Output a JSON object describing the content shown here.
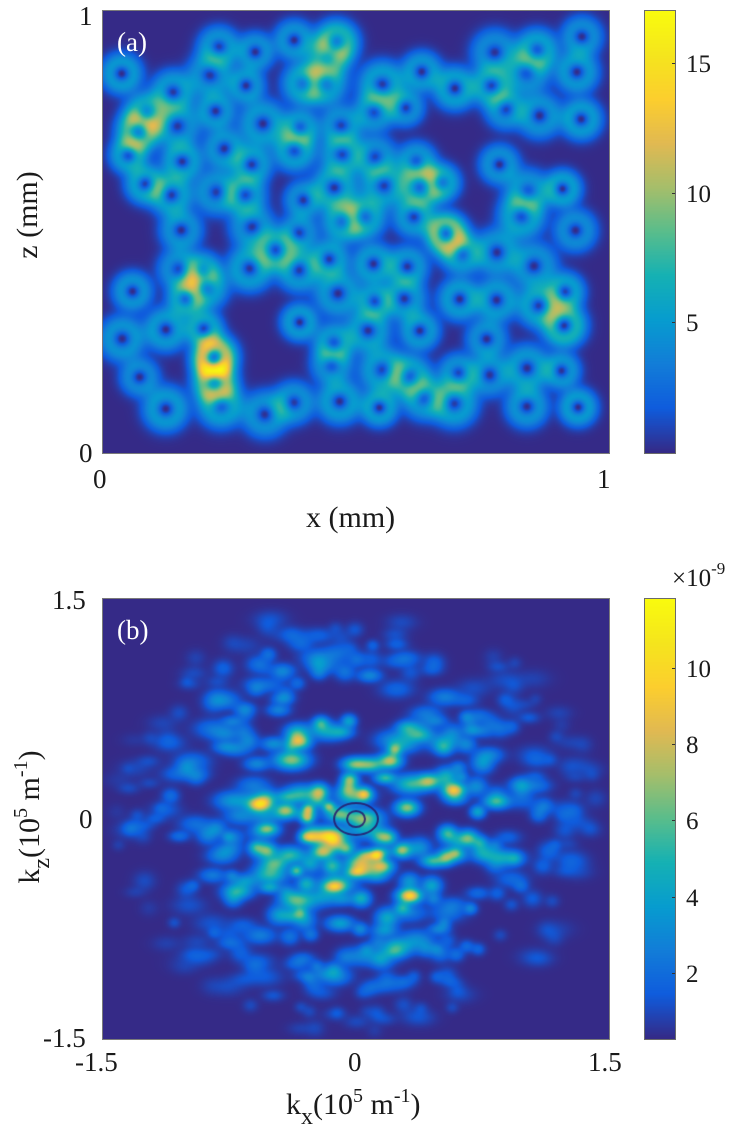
{
  "figure": {
    "panels": [
      {
        "id": "a",
        "label": "(a)",
        "xlabel": "x (mm)",
        "ylabel": "z (mm)",
        "xticks": [
          "0",
          "1"
        ],
        "yticks": [
          "1",
          "0"
        ],
        "colorbar": {
          "ticks": [
            "15",
            "10",
            "5"
          ],
          "exponent": ""
        }
      },
      {
        "id": "b",
        "label": "(b)",
        "xlabel_main": "k",
        "xlabel_sub": "x",
        "xlabel_rest": "(10",
        "xlabel_sup": "5",
        "xlabel_unit": " m",
        "xlabel_unit_sup": "-1",
        "xlabel_close": ")",
        "ylabel_main": "k",
        "ylabel_sub": "z",
        "ylabel_rest": "(10",
        "ylabel_sup": "5",
        "ylabel_unit": " m",
        "ylabel_unit_sup": "-1",
        "ylabel_close": ")",
        "xticks": [
          "-1.5",
          "0",
          "1.5"
        ],
        "yticks": [
          "1.5",
          "0",
          "-1.5"
        ],
        "colorbar": {
          "ticks": [
            "10",
            "8",
            "6",
            "4",
            "2"
          ],
          "exponent_prefix": "×10",
          "exponent_sup": "-9"
        }
      }
    ]
  },
  "chart_data": [
    {
      "type": "heatmap",
      "title": "(a)",
      "xlabel": "x (mm)",
      "ylabel": "z (mm)",
      "xlim": [
        0,
        1
      ],
      "ylim": [
        0,
        1
      ],
      "xticks": [
        0,
        1
      ],
      "yticks": [
        0,
        1
      ],
      "colormap": "parula",
      "clim": [
        0.2,
        17.2
      ],
      "colorbar_ticks": [
        5,
        10,
        15
      ],
      "grid": false,
      "description": "Intensity distribution of many ring-shaped (vortex/donut) beams randomly distributed in a 1 mm x 1 mm region; ring intensities mostly 4-9, hotspots up to ~16-17 where rings overlap.",
      "hotspots": [
        {
          "x": 0.07,
          "z": 0.73,
          "value": 15
        },
        {
          "x": 0.46,
          "z": 0.93,
          "value": 14
        },
        {
          "x": 0.22,
          "z": 0.22,
          "value": 17
        },
        {
          "x": 0.22,
          "z": 0.16,
          "value": 16
        },
        {
          "x": 0.91,
          "z": 0.29,
          "value": 15
        },
        {
          "x": 0.68,
          "z": 0.49,
          "value": 12
        },
        {
          "x": 0.34,
          "z": 0.46,
          "value": 11
        }
      ]
    },
    {
      "type": "heatmap",
      "title": "(b)",
      "xlabel": "k_x (10^5 m^-1)",
      "ylabel": "k_z (10^5 m^-1)",
      "xlim": [
        -1.5,
        1.5
      ],
      "ylim": [
        -1.5,
        1.5
      ],
      "xticks": [
        -1.5,
        0,
        1.5
      ],
      "yticks": [
        -1.5,
        0,
        1.5
      ],
      "colormap": "parula",
      "clim": [
        1e-10,
        1.16e-08
      ],
      "colorbar_ticks": [
        2e-09,
        4e-09,
        6e-09,
        8e-09,
        1e-08
      ],
      "colorbar_exponent": "x10^-9",
      "grid": false,
      "description": "Spatial-frequency spectrum: speckle-like disk centered at origin with radius ~1.2e5 m^-1; peak values ~10-11e-9 near |k|~0.3-0.6e5 m^-1, small dark ring structure at origin.",
      "peaks": [
        {
          "kx": -0.58,
          "kz": 0.1,
          "value": 11
        },
        {
          "kx": 0.58,
          "kz": 0.2,
          "value": 10.5
        },
        {
          "kx": -0.34,
          "kz": 0.53,
          "value": 10
        },
        {
          "kx": 0.2,
          "kz": 0.4,
          "value": 10.5
        },
        {
          "kx": -0.2,
          "kz": -0.22,
          "value": 10.5
        },
        {
          "kx": 0.15,
          "kz": -0.32,
          "value": 10.5
        },
        {
          "kx": 0.32,
          "kz": -0.52,
          "value": 10
        },
        {
          "kx": -0.42,
          "kz": 0.06,
          "value": 10
        },
        {
          "kx": 0.3,
          "kz": 0.08,
          "value": 9.5
        },
        {
          "kx": 0.43,
          "kz": 0.26,
          "value": 9
        }
      ]
    }
  ]
}
